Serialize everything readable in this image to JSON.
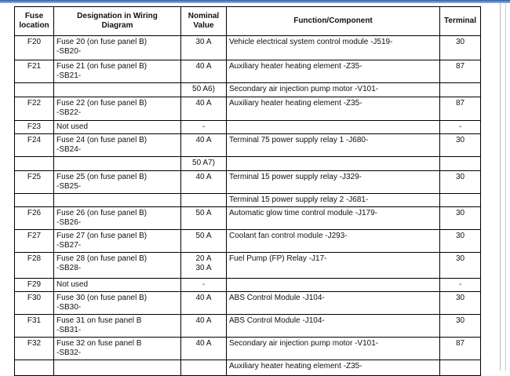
{
  "table": {
    "headers": [
      [
        "Fuse",
        "location"
      ],
      [
        "Designation in Wiring",
        "Diagram"
      ],
      [
        "Nominal",
        "Value"
      ],
      "Function/Component",
      "Terminal"
    ],
    "rows": [
      [
        "F20",
        [
          "Fuse 20 (on fuse panel B)",
          "-SB20-"
        ],
        "30 A",
        "Vehicle electrical system control module -J519-",
        "30"
      ],
      [
        "F21",
        [
          "Fuse 21 (on fuse panel B)",
          "-SB21-"
        ],
        "40 A",
        "Auxiliary heater heating element -Z35-",
        "87"
      ],
      [
        null,
        null,
        "50 A6)",
        "Secondary air injection pump motor -V101-",
        null
      ],
      [
        "F22",
        [
          "Fuse 22 (on fuse panel B)",
          "-SB22-"
        ],
        "40 A",
        "Auxiliary heater heating element -Z35-",
        "87"
      ],
      [
        "F23",
        "Not used",
        "-",
        null,
        "-"
      ],
      [
        "F24",
        [
          "Fuse 24 (on fuse panel B)",
          "-SB24-"
        ],
        "40 A",
        "Terminal 75 power supply relay 1 -J680-",
        "30"
      ],
      [
        null,
        null,
        "50 A7)",
        null,
        null
      ],
      [
        "F25",
        [
          "Fuse 25 (on fuse panel B)",
          "-SB25-"
        ],
        "40 A",
        "Terminal 15 power supply relay -J329-",
        "30"
      ],
      [
        null,
        null,
        null,
        "Terminal 15 power supply relay 2 -J681-",
        null
      ],
      [
        "F26",
        [
          "Fuse 26 (on fuse panel B)",
          "-SB26-"
        ],
        "50 A",
        "Automatic glow time control module -J179-",
        "30"
      ],
      [
        "F27",
        [
          "Fuse 27 (on fuse panel B)",
          "-SB27-"
        ],
        "50 A",
        "Coolant fan control module -J293-",
        "30"
      ],
      [
        "F28",
        [
          "Fuse 28 (on fuse panel B)",
          "-SB28-"
        ],
        [
          "20 A",
          "30 A"
        ],
        "Fuel Pump (FP) Relay -J17-",
        "30"
      ],
      [
        "F29",
        "Not used",
        "-",
        null,
        "-"
      ],
      [
        "F30",
        [
          "Fuse 30 (on fuse panel B)",
          "-SB30-"
        ],
        "40 A",
        "ABS Control Module -J104-",
        "30"
      ],
      [
        "F31",
        [
          "Fuse 31 on fuse panel B",
          "-SB31-"
        ],
        "40 A",
        "ABS Control Module -J104-",
        "30"
      ],
      [
        "F32",
        [
          "Fuse 32 on fuse panel B",
          "-SB32-"
        ],
        "40 A",
        "Secondary air injection pump motor -V101-",
        "87"
      ],
      [
        null,
        null,
        null,
        "Auxiliary heater heating element -Z35-",
        null
      ]
    ]
  }
}
